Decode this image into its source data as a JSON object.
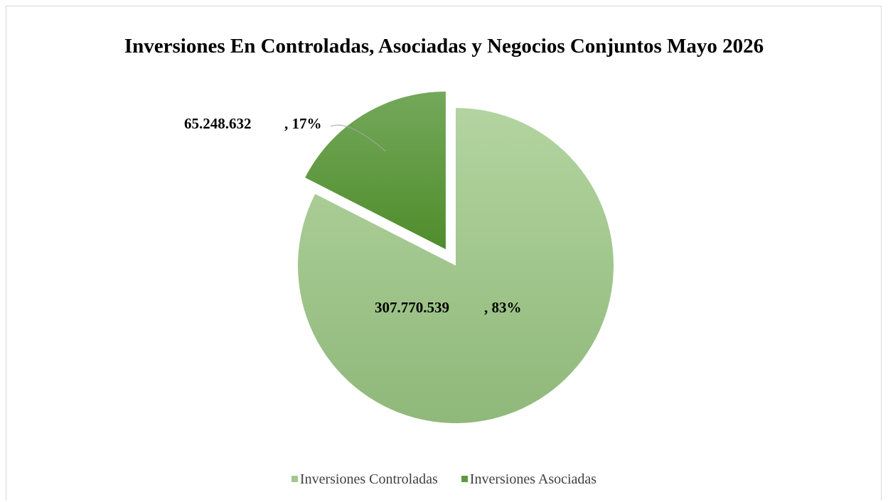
{
  "chart_data": {
    "type": "pie",
    "title": "Inversiones En Controladas, Asociadas y Negocios Conjuntos Mayo 2026",
    "categories": [
      "Inversiones Controladas",
      "Inversiones Asociadas"
    ],
    "values": [
      307770539,
      65248632
    ],
    "value_labels": [
      "307.770.539",
      "65.248.632"
    ],
    "percent_labels": [
      ", 83%",
      ", 17%"
    ],
    "percentages": [
      83,
      17
    ],
    "colors": [
      "#a3c98a",
      "#5f9a3c"
    ],
    "exploded": [
      false,
      true
    ],
    "legend_position": "bottom"
  }
}
